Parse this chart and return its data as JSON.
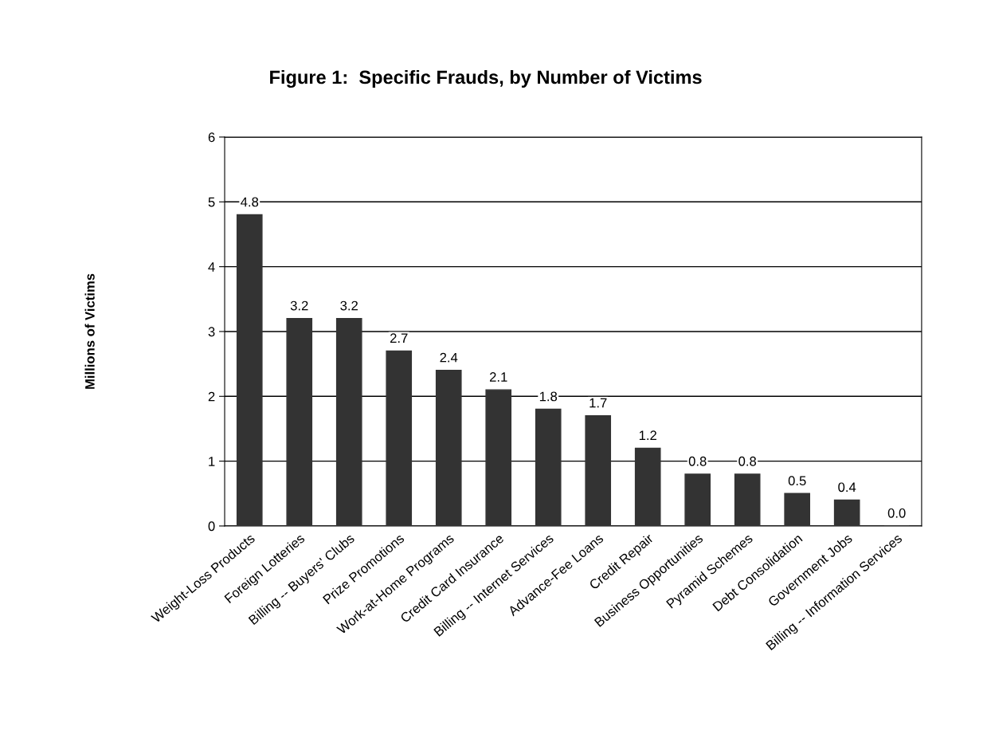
{
  "chart_data": {
    "type": "bar",
    "title": "Figure 1:  Specific Frauds, by Number of Victims",
    "ylabel": "Millions of Victims",
    "categories": [
      "Weight-Loss Products",
      "Foreign Lotteries",
      "Billing -- Buyers' Clubs",
      "Prize Promotions",
      "Work-at-Home Programs",
      "Credit Card Insurance",
      "Billing -- Internet Services",
      "Advance-Fee Loans",
      "Credit Repair",
      "Business Opportunities",
      "Pyramid Schemes",
      "Debt Consolidation",
      "Government Jobs",
      "Billing -- Information Services"
    ],
    "values": [
      4.8,
      3.2,
      3.2,
      2.7,
      2.4,
      2.1,
      1.8,
      1.7,
      1.2,
      0.8,
      0.8,
      0.5,
      0.4,
      0.0
    ],
    "value_labels": [
      "4.8",
      "3.2",
      "3.2",
      "2.7",
      "2.4",
      "2.1",
      "1.8",
      "1.7",
      "1.2",
      "0.8",
      "0.8",
      "0.5",
      "0.4",
      "0.0"
    ],
    "color": "#333333",
    "ylim": [
      0,
      6
    ],
    "yticks": [
      0,
      1,
      2,
      3,
      4,
      5,
      6
    ],
    "grid": "y",
    "legend": false
  }
}
